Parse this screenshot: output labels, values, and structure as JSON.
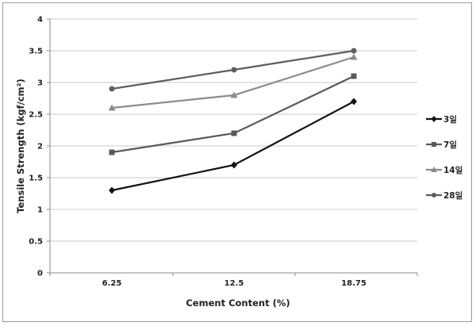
{
  "chart_data": {
    "type": "line",
    "categories": [
      "6.25",
      "12.5",
      "18.75"
    ],
    "ylim": [
      0,
      4
    ],
    "yticks": [
      "0",
      "0.5",
      "1",
      "1.5",
      "2",
      "2.5",
      "3",
      "3.5",
      "4"
    ],
    "ytick_values": [
      0,
      0.5,
      1,
      1.5,
      2,
      2.5,
      3,
      3.5,
      4
    ],
    "xlabel": "Cement  Content (%)",
    "ylabel": "Tensile   Strength   (kgf/cm²)",
    "grid": "horizontal",
    "legend_position": "right",
    "series": [
      {
        "name": "3일",
        "values": [
          1.3,
          1.7,
          2.7
        ],
        "color": "#111111",
        "marker": "diamond"
      },
      {
        "name": "7일",
        "values": [
          1.9,
          2.2,
          3.1
        ],
        "color": "#595959",
        "marker": "square"
      },
      {
        "name": "14일",
        "values": [
          2.6,
          2.8,
          3.4
        ],
        "color": "#8c8c8c",
        "marker": "triangle"
      },
      {
        "name": "28일",
        "values": [
          2.9,
          3.2,
          3.5
        ],
        "color": "#5e5e5e",
        "marker": "circle"
      }
    ]
  }
}
